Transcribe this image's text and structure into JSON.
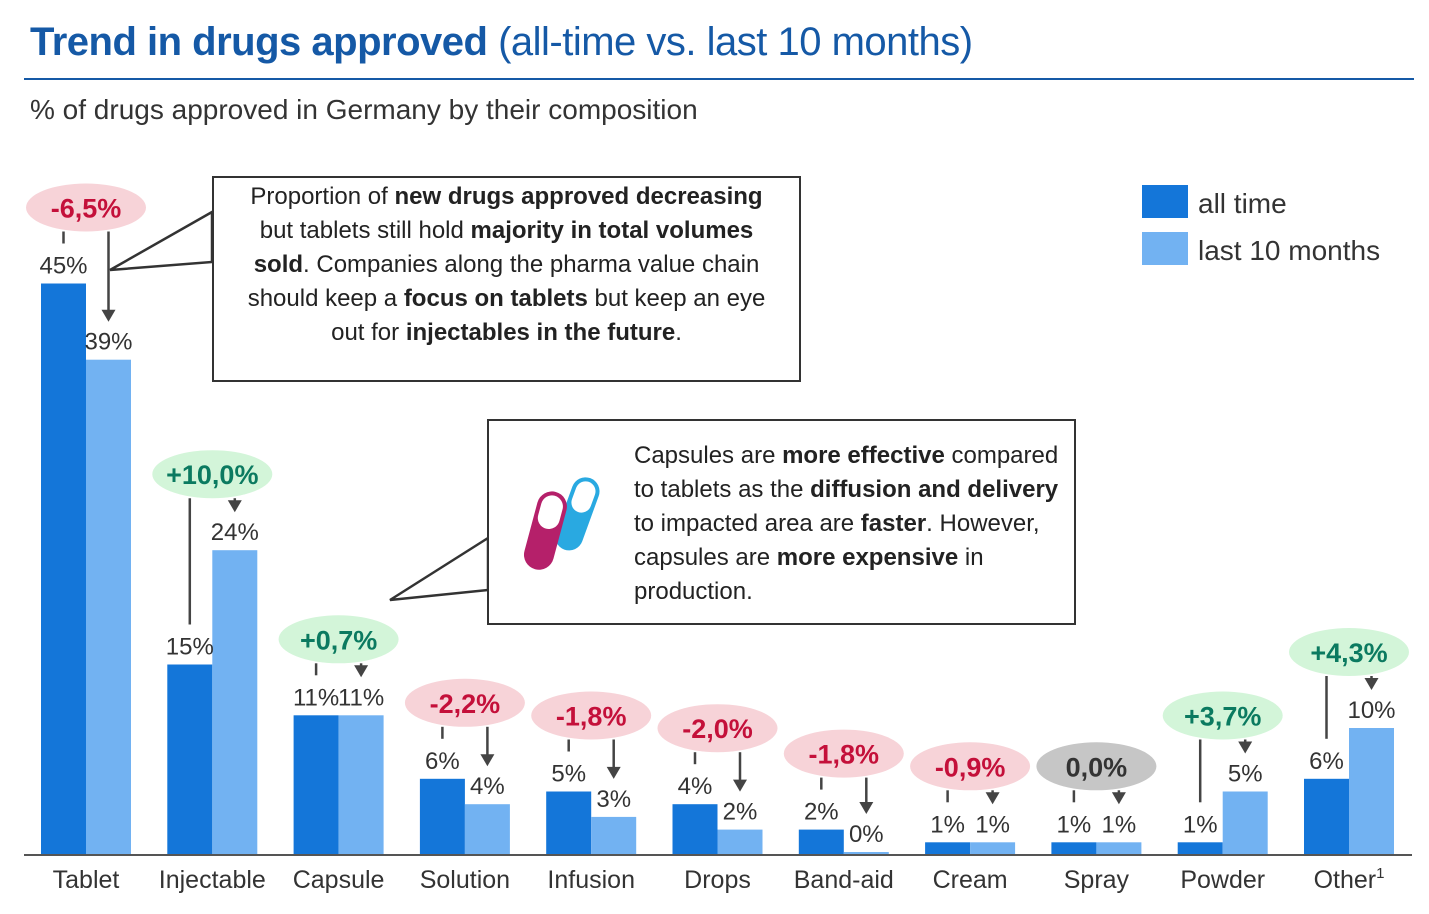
{
  "header": {
    "title_bold": "Trend in drugs approved",
    "title_rest": "(all-time vs. last 10 months)",
    "subtitle": "% of drugs approved in Germany by their composition"
  },
  "colors": {
    "all_time": "#1476d9",
    "last_10_months": "#72b2f2",
    "negative_bg": "#f7d3d8",
    "negative_text": "#c4103a",
    "positive_bg": "#d3f5d9",
    "positive_text": "#0b7a60",
    "neutral_bg": "#c6c6c6",
    "neutral_text": "#333333"
  },
  "chart_data": {
    "type": "bar",
    "categories": [
      "Tablet",
      "Injectable",
      "Capsule",
      "Solution",
      "Infusion",
      "Drops",
      "Band-aid",
      "Cream",
      "Spray",
      "Powder",
      "Other"
    ],
    "category_superscripts": [
      "",
      "",
      "",
      "",
      "",
      "",
      "",
      "",
      "",
      "",
      "1"
    ],
    "series": [
      {
        "name": "all time",
        "values": [
          45,
          15,
          11,
          6,
          5,
          4,
          2,
          1,
          1,
          1,
          6
        ],
        "labels": [
          "45%",
          "15%",
          "11%",
          "6%",
          "5%",
          "4%",
          "2%",
          "1%",
          "1%",
          "1%",
          "6%"
        ]
      },
      {
        "name": "last 10 months",
        "values": [
          39,
          24,
          11,
          4,
          3,
          2,
          0,
          1,
          1,
          5,
          10
        ],
        "labels": [
          "39%",
          "24%",
          "11%",
          "4%",
          "3%",
          "2%",
          "0%",
          "1%",
          "1%",
          "5%",
          "10%"
        ]
      }
    ],
    "changes": [
      "-6,5%",
      "+10,0%",
      "+0,7%",
      "-2,2%",
      "-1,8%",
      "-2,0%",
      "-1,8%",
      "-0,9%",
      "0,0%",
      "+3,7%",
      "+4,3%"
    ],
    "ylim": [
      0,
      45
    ],
    "grid": false,
    "legend": "top-right"
  },
  "callouts": [
    {
      "segments": [
        {
          "t": "Proportion of ",
          "b": false
        },
        {
          "t": "new drugs approved decreasing",
          "b": true
        },
        {
          "t": " but tablets still hold ",
          "b": false
        },
        {
          "t": "majority in total volumes sold",
          "b": true
        },
        {
          "t": ". Companies along the pharma value chain should keep a ",
          "b": false
        },
        {
          "t": "focus on tablets",
          "b": true
        },
        {
          "t": " but keep an eye out for ",
          "b": false
        },
        {
          "t": "injectables in the future",
          "b": true
        },
        {
          "t": ".",
          "b": false
        }
      ]
    },
    {
      "segments": [
        {
          "t": "Capsules are ",
          "b": false
        },
        {
          "t": "more effective",
          "b": true
        },
        {
          "t": " compared to tablets as the ",
          "b": false
        },
        {
          "t": "diffusion and delivery",
          "b": true
        },
        {
          "t": " to impacted area are ",
          "b": false
        },
        {
          "t": "faster",
          "b": true
        },
        {
          "t": ". However, capsules are ",
          "b": false
        },
        {
          "t": "more expensive",
          "b": true
        },
        {
          "t": " in production.",
          "b": false
        }
      ]
    }
  ]
}
